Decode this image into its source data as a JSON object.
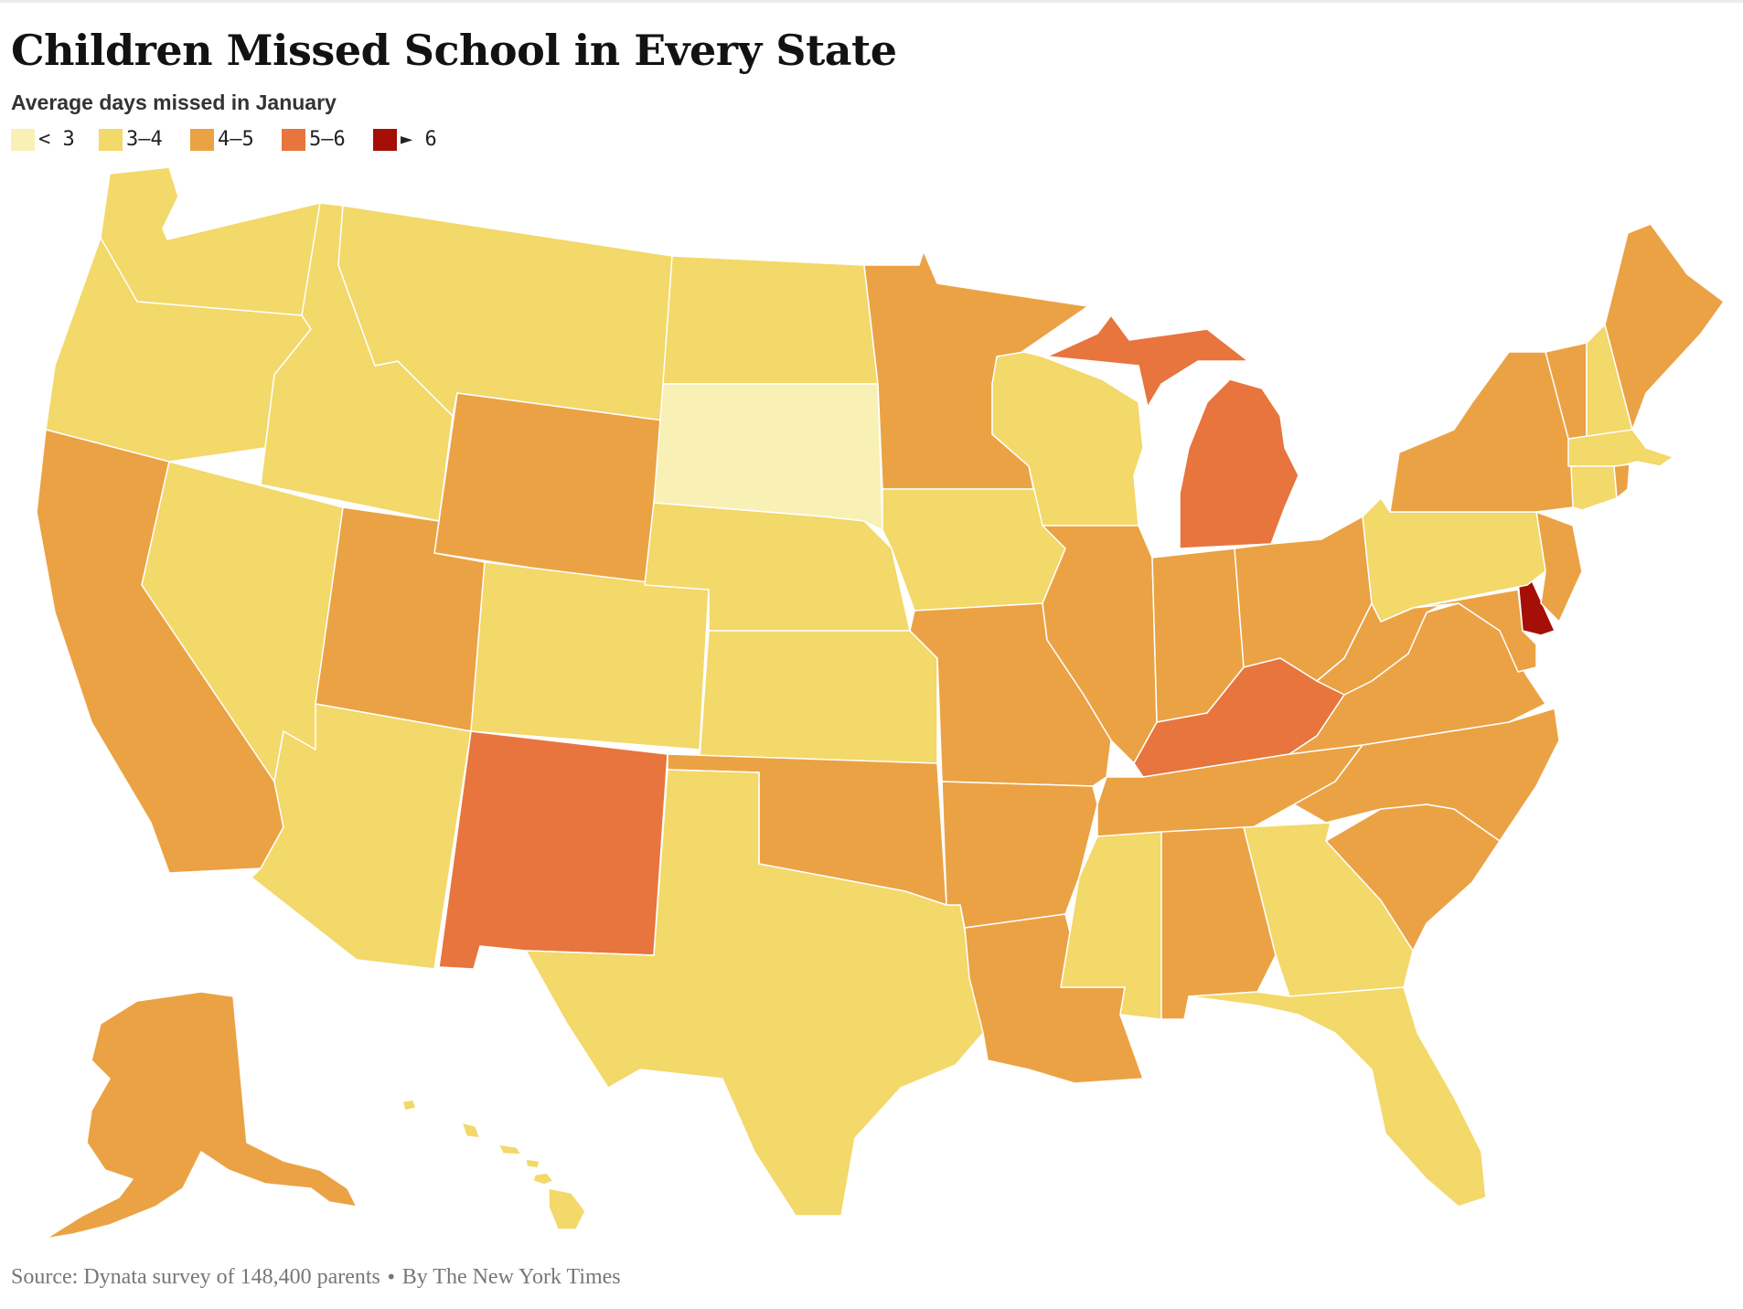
{
  "title": "Children Missed School in Every State",
  "subtitle": "Average days missed in January",
  "legend": [
    {
      "label": "< 3",
      "color": "#f8f0b4"
    },
    {
      "label": "3–4",
      "color": "#f3d86a"
    },
    {
      "label": "4–5",
      "color": "#eba244"
    },
    {
      "label": "5–6",
      "color": "#e7753d"
    },
    {
      "label": "► 6",
      "color": "#a50f08"
    }
  ],
  "source": {
    "source_text": "Source: Dynata survey of 148,400 parents",
    "separator": "•",
    "credit": "By The New York Times"
  },
  "colors": {
    "bucket_lt3": "#f8f0b4",
    "bucket_3_4": "#f3d86a",
    "bucket_4_5": "#eba244",
    "bucket_5_6": "#e7753d",
    "bucket_gt6": "#a50f08",
    "border": "#ffffff"
  },
  "states": [
    {
      "id": "WA",
      "bucket": "3–4"
    },
    {
      "id": "OR",
      "bucket": "3–4"
    },
    {
      "id": "CA",
      "bucket": "4–5"
    },
    {
      "id": "NV",
      "bucket": "3–4"
    },
    {
      "id": "ID",
      "bucket": "3–4"
    },
    {
      "id": "MT",
      "bucket": "3–4"
    },
    {
      "id": "WY",
      "bucket": "4–5"
    },
    {
      "id": "UT",
      "bucket": "4–5"
    },
    {
      "id": "AZ",
      "bucket": "3–4"
    },
    {
      "id": "CO",
      "bucket": "3–4"
    },
    {
      "id": "NM",
      "bucket": "5–6"
    },
    {
      "id": "ND",
      "bucket": "3–4"
    },
    {
      "id": "SD",
      "bucket": "< 3"
    },
    {
      "id": "NE",
      "bucket": "3–4"
    },
    {
      "id": "KS",
      "bucket": "3–4"
    },
    {
      "id": "OK",
      "bucket": "4–5"
    },
    {
      "id": "TX",
      "bucket": "3–4"
    },
    {
      "id": "MN",
      "bucket": "4–5"
    },
    {
      "id": "IA",
      "bucket": "3–4"
    },
    {
      "id": "MO",
      "bucket": "4–5"
    },
    {
      "id": "AR",
      "bucket": "4–5"
    },
    {
      "id": "LA",
      "bucket": "4–5"
    },
    {
      "id": "WI",
      "bucket": "3–4"
    },
    {
      "id": "IL",
      "bucket": "4–5"
    },
    {
      "id": "MI",
      "bucket": "5–6"
    },
    {
      "id": "IN",
      "bucket": "4–5"
    },
    {
      "id": "OH",
      "bucket": "4–5"
    },
    {
      "id": "KY",
      "bucket": "5–6"
    },
    {
      "id": "TN",
      "bucket": "4–5"
    },
    {
      "id": "MS",
      "bucket": "3–4"
    },
    {
      "id": "AL",
      "bucket": "4–5"
    },
    {
      "id": "GA",
      "bucket": "3–4"
    },
    {
      "id": "FL",
      "bucket": "3–4"
    },
    {
      "id": "SC",
      "bucket": "4–5"
    },
    {
      "id": "NC",
      "bucket": "4–5"
    },
    {
      "id": "VA",
      "bucket": "4–5"
    },
    {
      "id": "WV",
      "bucket": "4–5"
    },
    {
      "id": "MD",
      "bucket": "4–5"
    },
    {
      "id": "DE",
      "bucket": "► 6"
    },
    {
      "id": "NJ",
      "bucket": "4–5"
    },
    {
      "id": "PA",
      "bucket": "3–4"
    },
    {
      "id": "NY",
      "bucket": "4–5"
    },
    {
      "id": "VT",
      "bucket": "4–5"
    },
    {
      "id": "NH",
      "bucket": "3–4"
    },
    {
      "id": "ME",
      "bucket": "4–5"
    },
    {
      "id": "MA",
      "bucket": "3–4"
    },
    {
      "id": "CT",
      "bucket": "3–4"
    },
    {
      "id": "RI",
      "bucket": "4–5"
    },
    {
      "id": "AK",
      "bucket": "4–5"
    },
    {
      "id": "HI",
      "bucket": "3–4"
    }
  ]
}
